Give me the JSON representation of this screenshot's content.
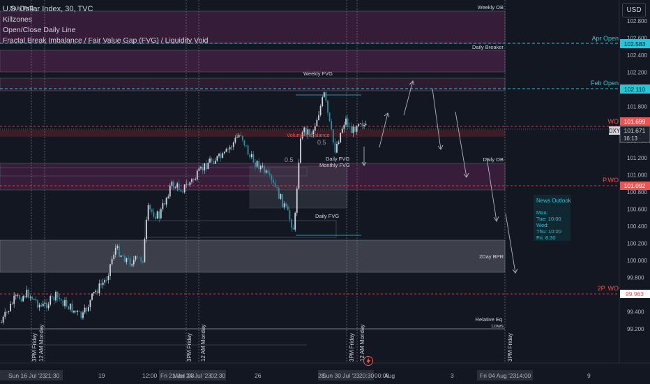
{
  "legend": {
    "symbol": "U.S. Dollar Index, 30, TVC",
    "indicators": [
      "Killzones",
      "Open/Close Daily Line",
      "Fractal Break Imbalance / Fair Value Gap (FVG) / Liquidity Void"
    ]
  },
  "currency_button": "USD",
  "price_axis": {
    "ticks": [
      "102.800",
      "102.600",
      "102.400",
      "102.200",
      "102.000",
      "101.800",
      "101.600",
      "101.400",
      "101.200",
      "101.000",
      "100.800",
      "100.600",
      "100.400",
      "100.200",
      "100.000",
      "99.800",
      "99.600",
      "99.400",
      "99.200"
    ],
    "labels": {
      "apr_open": "102.583",
      "feb_open": "102.110",
      "wo": "101.699",
      "dxy_price": "101.671",
      "dxy_countdown": "16:13",
      "dxy_symbol": "DXY",
      "pwo": "101.092",
      "two_pwo": "99.963"
    }
  },
  "time_axis": {
    "ticks": [
      "Sun 16 Jul '23",
      "21:30",
      "19",
      "12:00",
      "Fri 21 Jul '23",
      "Mon 24 Jul '23",
      "02:30",
      "26",
      "28",
      "Sun 30 Jul '23",
      "20:30",
      "00:00",
      "Aug",
      "3",
      "Fri 04 Aug '23",
      "14:00",
      "9"
    ]
  },
  "zones": {
    "daily_pvg": "Daily PVG",
    "weekly_ob": "Weekly OB",
    "daily_breaker": "Daily Breaker",
    "weekly_fvg": "Weekly FVG",
    "daily_ob": "Daily OB",
    "daily_fvg_upper": "Daily FVG",
    "monthly_fvg": "Monthly FVG",
    "daily_fvg_lower": "Daily FVG",
    "two_day_bpr": "2Day BPR",
    "volume_imbalance": "Volume Imbalance",
    "half_upper": "0.5",
    "half_lower": "0.5",
    "relative_eq": "Relative Eq",
    "lows": "Lows"
  },
  "lines": {
    "apr_open": "Apr Open",
    "feb_open": "Feb Open",
    "wo": "WO",
    "pwo": "P.WO",
    "two_pwo": "2P. WO"
  },
  "session_labels": [
    "3PM Friday",
    "12 AM Monday",
    "3PM Friday",
    "12 AM Monday",
    "3PM Friday",
    "12 AM Monday",
    "3PM Friday"
  ],
  "news": {
    "title": "News Outlook",
    "lines": [
      "Mon:",
      "Tue: 10:00",
      "Wed:",
      "Thu: 10:00",
      "Fri: 8:30"
    ]
  },
  "colors": {
    "background": "#131722",
    "bull": "#d1d4dc",
    "bear": "#2c8e9e",
    "accent_blue": "#26c6da",
    "red": "#ef5350",
    "zone_purple": "#3a1e3d",
    "zone_grey": "#434651"
  }
}
